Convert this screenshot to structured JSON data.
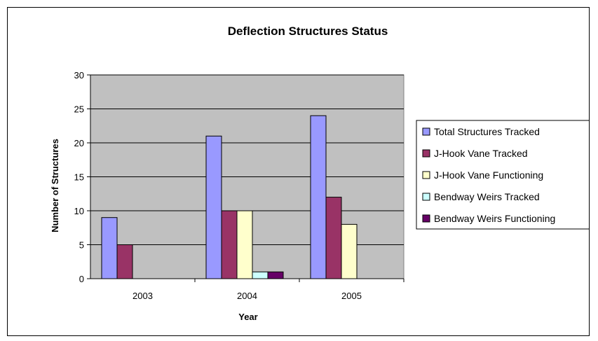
{
  "chart_data": {
    "type": "bar",
    "title": "Deflection Structures Status",
    "xlabel": "Year",
    "ylabel": "Number of Structures",
    "ylim": [
      0,
      30
    ],
    "yticks": [
      0,
      5,
      10,
      15,
      20,
      25,
      30
    ],
    "grid": true,
    "legend_position": "right",
    "plot_background": "#c0c0c0",
    "categories": [
      "2003",
      "2004",
      "2005"
    ],
    "series": [
      {
        "name": "Total Structures Tracked",
        "color": "#9999ff",
        "values": [
          9,
          21,
          24
        ]
      },
      {
        "name": "J-Hook Vane Tracked",
        "color": "#993366",
        "values": [
          5,
          10,
          12
        ]
      },
      {
        "name": "J-Hook Vane Functioning",
        "color": "#ffffcc",
        "values": [
          0,
          10,
          8
        ]
      },
      {
        "name": "Bendway Weirs Tracked",
        "color": "#ccffff",
        "values": [
          0,
          1,
          0
        ]
      },
      {
        "name": "Bendway Weirs Functioning",
        "color": "#660066",
        "values": [
          0,
          1,
          0
        ]
      }
    ]
  }
}
